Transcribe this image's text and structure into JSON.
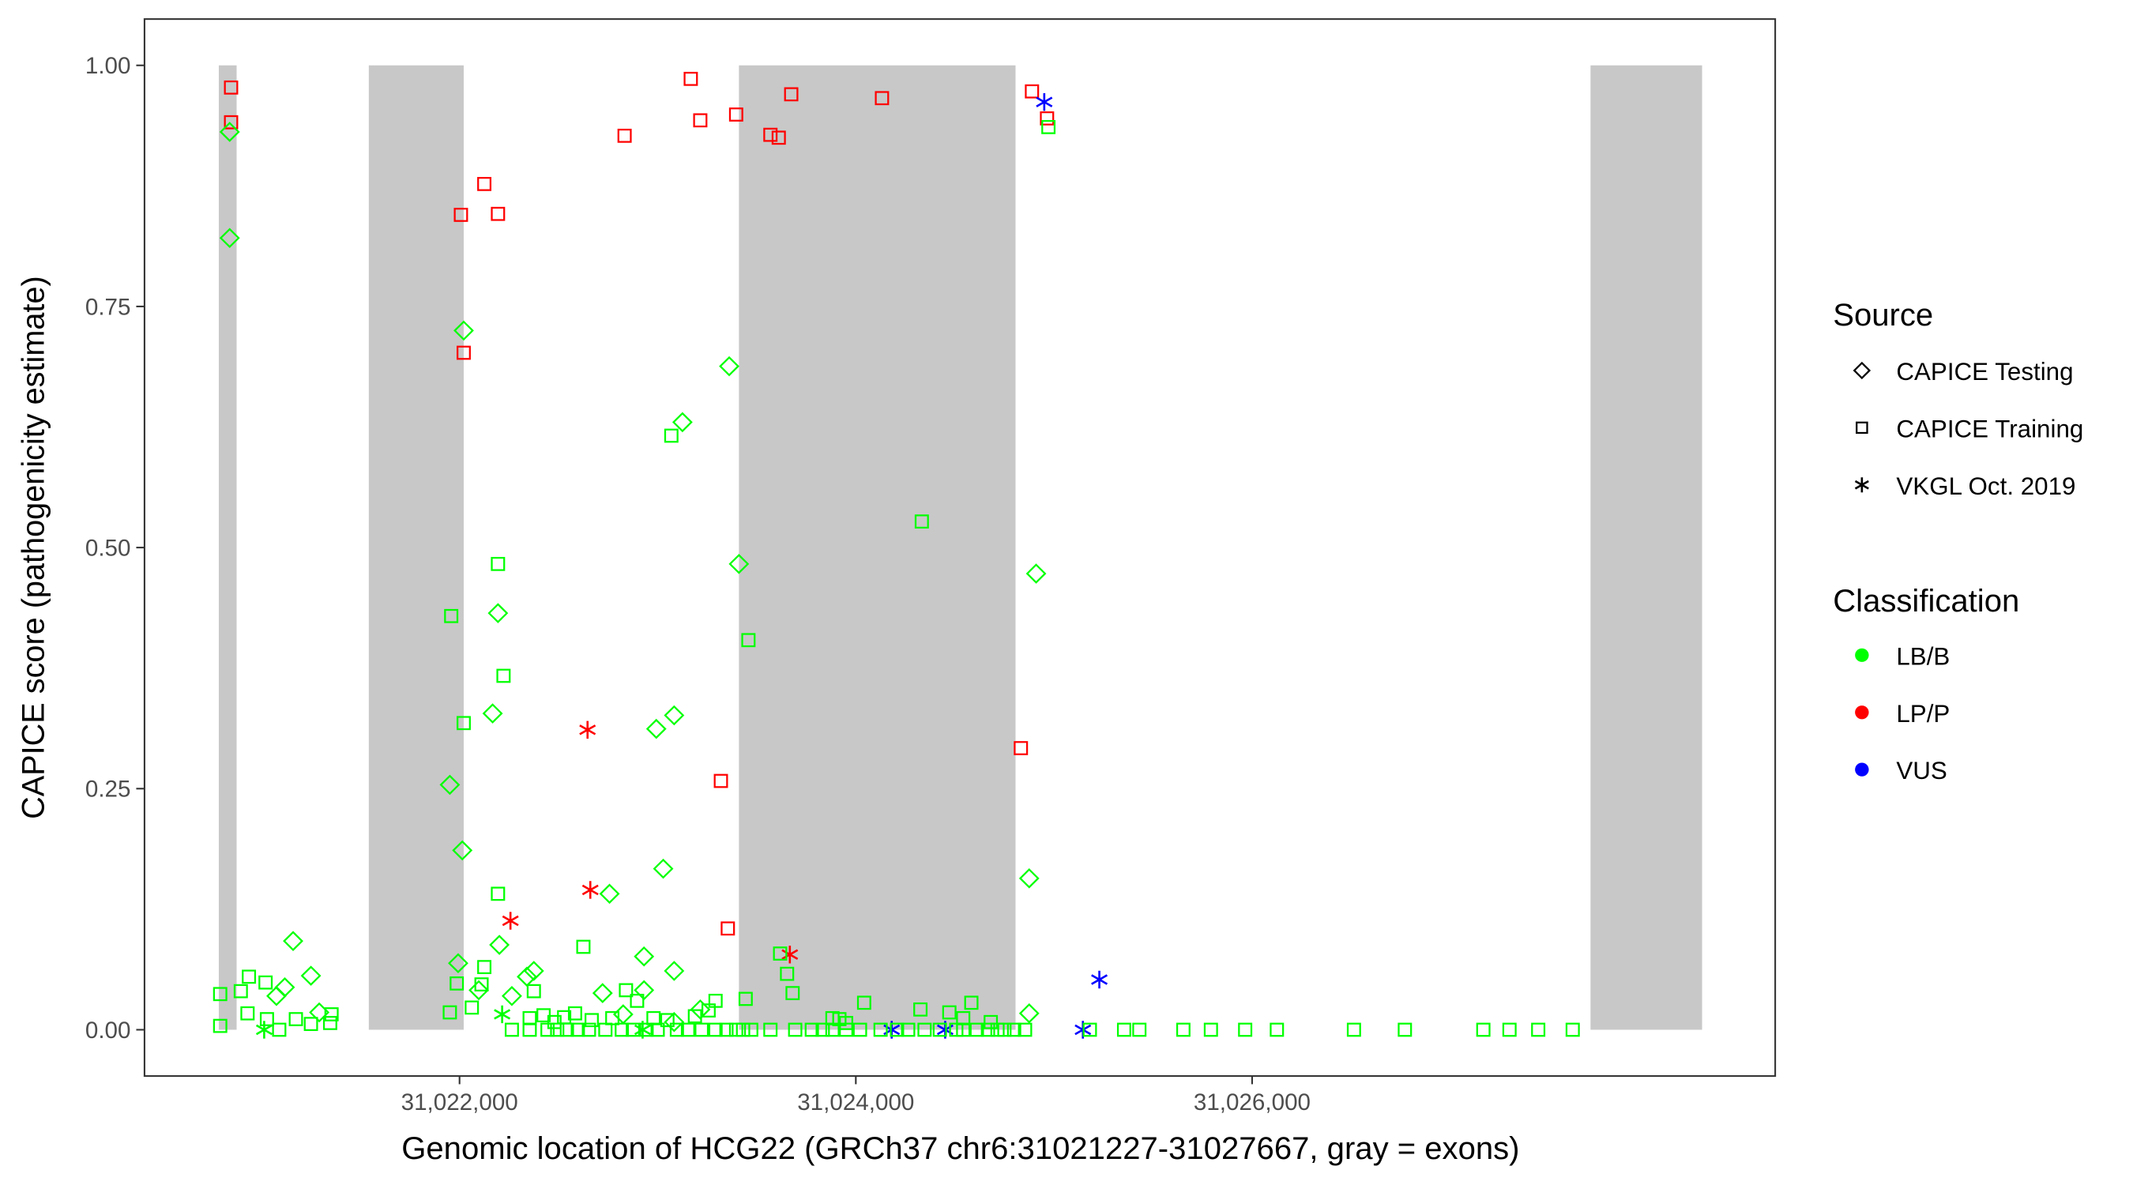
{
  "chart_data": {
    "type": "scatter",
    "title": "",
    "xlabel": "Genomic location of HCG22 (GRCh37 chr6:31021227-31027667, gray = exons)",
    "ylabel": "CAPICE score (pathogenicity estimate)",
    "xlim": [
      31020410,
      31028640
    ],
    "ylim": [
      -0.048,
      1.048
    ],
    "x_ticks": [
      31022000,
      31024000,
      31026000
    ],
    "x_tick_labels": [
      "31,022,000",
      "31,024,000",
      "31,026,000"
    ],
    "y_ticks": [
      0,
      0.25,
      0.5,
      0.75,
      1.0
    ],
    "y_tick_labels": [
      "0.00",
      "0.25",
      "0.50",
      "0.75",
      "1.00"
    ],
    "grid": false,
    "legend_placement": "right",
    "exons": [
      [
        31020785,
        31020875
      ],
      [
        31021542,
        31022021
      ],
      [
        31023410,
        31024806
      ],
      [
        31027708,
        31028271
      ]
    ],
    "exon_color": "#c8c8c8",
    "legend": {
      "source_title": "Source",
      "sources": [
        {
          "key": "testing",
          "label": "CAPICE Testing",
          "shape": "diamond"
        },
        {
          "key": "training",
          "label": "CAPICE Training",
          "shape": "square"
        },
        {
          "key": "vkgl",
          "label": "VKGL Oct. 2019",
          "shape": "asterisk"
        }
      ],
      "class_title": "Classification",
      "classes": [
        {
          "key": "LB/B",
          "label": "LB/B",
          "color": "#00ff00"
        },
        {
          "key": "LP/P",
          "label": "LP/P",
          "color": "#ff0000"
        },
        {
          "key": "VUS",
          "label": "VUS",
          "color": "#0000ff"
        }
      ]
    },
    "series": [
      {
        "source": "training",
        "class": "LP/P",
        "points": [
          [
            31020847,
            0.977
          ],
          [
            31020847,
            0.941
          ],
          [
            31022007,
            0.845
          ],
          [
            31022125,
            0.877
          ],
          [
            31022194,
            0.846
          ],
          [
            31022021,
            0.702
          ],
          [
            31022833,
            0.927
          ],
          [
            31023167,
            0.986
          ],
          [
            31023215,
            0.943
          ],
          [
            31023396,
            0.949
          ],
          [
            31023569,
            0.928
          ],
          [
            31023611,
            0.925
          ],
          [
            31023674,
            0.97
          ],
          [
            31024132,
            0.966
          ],
          [
            31024889,
            0.973
          ],
          [
            31024965,
            0.945
          ],
          [
            31024833,
            0.292
          ],
          [
            31023319,
            0.258
          ],
          [
            31023354,
            0.105
          ]
        ]
      },
      {
        "source": "vkgl",
        "class": "LP/P",
        "points": [
          [
            31022646,
            0.311
          ],
          [
            31022660,
            0.145
          ],
          [
            31022257,
            0.113
          ],
          [
            31023667,
            0.078
          ]
        ]
      },
      {
        "source": "vkgl",
        "class": "VUS",
        "points": [
          [
            31024951,
            0.962
          ],
          [
            31025229,
            0.052
          ],
          [
            31024181,
            0
          ],
          [
            31024451,
            0
          ],
          [
            31025146,
            0
          ]
        ]
      },
      {
        "source": "vkgl",
        "class": "LB/B",
        "points": [
          [
            31021014,
            0
          ],
          [
            31022215,
            0.016
          ],
          [
            31022924,
            0
          ]
        ]
      },
      {
        "source": "testing",
        "class": "LB/B",
        "points": [
          [
            31020840,
            0.931
          ],
          [
            31020840,
            0.821
          ],
          [
            31022021,
            0.725
          ],
          [
            31023361,
            0.688
          ],
          [
            31023125,
            0.63
          ],
          [
            31023410,
            0.483
          ],
          [
            31024910,
            0.473
          ],
          [
            31022194,
            0.432
          ],
          [
            31022167,
            0.328
          ],
          [
            31023083,
            0.326
          ],
          [
            31022993,
            0.312
          ],
          [
            31021951,
            0.254
          ],
          [
            31022014,
            0.186
          ],
          [
            31023028,
            0.167
          ],
          [
            31024875,
            0.157
          ],
          [
            31022757,
            0.141
          ],
          [
            31021160,
            0.092
          ],
          [
            31022201,
            0.088
          ],
          [
            31022931,
            0.076
          ],
          [
            31021250,
            0.056
          ],
          [
            31021993,
            0.069
          ],
          [
            31023083,
            0.061
          ],
          [
            31022375,
            0.061
          ],
          [
            31022340,
            0.055
          ],
          [
            31021118,
            0.044
          ],
          [
            31021076,
            0.035
          ],
          [
            31022097,
            0.041
          ],
          [
            31022722,
            0.038
          ],
          [
            31022931,
            0.041
          ],
          [
            31023215,
            0.021
          ],
          [
            31022264,
            0.035
          ],
          [
            31024875,
            0.017
          ],
          [
            31021292,
            0.018
          ],
          [
            31022826,
            0.016
          ],
          [
            31023083,
            0.008
          ]
        ]
      },
      {
        "source": "training",
        "class": "LB/B",
        "points": [
          [
            31024972,
            0.936
          ],
          [
            31024333,
            0.527
          ],
          [
            31022194,
            0.483
          ],
          [
            31021958,
            0.429
          ],
          [
            31023458,
            0.404
          ],
          [
            31022222,
            0.367
          ],
          [
            31022021,
            0.318
          ],
          [
            31023069,
            0.616
          ],
          [
            31022194,
            0.141
          ],
          [
            31022625,
            0.086
          ],
          [
            31023618,
            0.079
          ],
          [
            31023653,
            0.058
          ],
          [
            31023681,
            0.038
          ],
          [
            31023444,
            0.032
          ],
          [
            31020937,
            0.055
          ],
          [
            31021021,
            0.049
          ],
          [
            31020896,
            0.04
          ],
          [
            31020792,
            0.037
          ],
          [
            31020930,
            0.017
          ],
          [
            31020792,
            0.004
          ],
          [
            31021986,
            0.048
          ],
          [
            31022125,
            0.065
          ],
          [
            31022111,
            0.047
          ],
          [
            31021951,
            0.018
          ],
          [
            31022062,
            0.023
          ],
          [
            31022375,
            0.04
          ],
          [
            31022840,
            0.041
          ],
          [
            31022896,
            0.03
          ],
          [
            31023292,
            0.03
          ],
          [
            31024042,
            0.028
          ],
          [
            31024326,
            0.021
          ],
          [
            31024583,
            0.028
          ],
          [
            31024472,
            0.018
          ],
          [
            31023917,
            0.011
          ],
          [
            31021354,
            0.016
          ],
          [
            31021347,
            0.007
          ],
          [
            31021028,
            0.011
          ],
          [
            31021174,
            0.011
          ],
          [
            31021250,
            0.006
          ],
          [
            31021090,
            0
          ],
          [
            31022354,
            0.012
          ],
          [
            31022424,
            0.015
          ],
          [
            31022479,
            0.008
          ],
          [
            31022528,
            0.013
          ],
          [
            31022583,
            0.017
          ],
          [
            31022667,
            0.01
          ],
          [
            31022771,
            0.012
          ],
          [
            31022979,
            0.012
          ],
          [
            31023049,
            0.01
          ],
          [
            31023188,
            0.014
          ],
          [
            31023257,
            0.02
          ],
          [
            31023882,
            0.012
          ],
          [
            31023951,
            0.007
          ],
          [
            31024542,
            0.012
          ],
          [
            31024681,
            0.008
          ],
          [
            31022264,
            0
          ],
          [
            31022354,
            0
          ],
          [
            31022444,
            0
          ],
          [
            31022493,
            0
          ],
          [
            31022542,
            0
          ],
          [
            31022597,
            0
          ],
          [
            31022653,
            0
          ],
          [
            31022736,
            0
          ],
          [
            31022819,
            0
          ],
          [
            31022875,
            0
          ],
          [
            31022944,
            0
          ],
          [
            31023000,
            0
          ],
          [
            31023097,
            0
          ],
          [
            31023153,
            0
          ],
          [
            31023222,
            0
          ],
          [
            31023292,
            0
          ],
          [
            31023347,
            0
          ],
          [
            31023396,
            0
          ],
          [
            31023431,
            0
          ],
          [
            31023472,
            0
          ],
          [
            31023569,
            0
          ],
          [
            31023694,
            0
          ],
          [
            31023778,
            0
          ],
          [
            31023833,
            0
          ],
          [
            31023882,
            0
          ],
          [
            31023951,
            0
          ],
          [
            31024021,
            0
          ],
          [
            31024125,
            0
          ],
          [
            31024208,
            0
          ],
          [
            31024264,
            0
          ],
          [
            31024347,
            0
          ],
          [
            31024424,
            0
          ],
          [
            31024507,
            0
          ],
          [
            31024542,
            0
          ],
          [
            31024611,
            0
          ],
          [
            31024667,
            0
          ],
          [
            31024715,
            0
          ],
          [
            31024750,
            0
          ],
          [
            31024799,
            0
          ],
          [
            31024854,
            0
          ],
          [
            31025181,
            0
          ],
          [
            31025354,
            0
          ],
          [
            31025431,
            0
          ],
          [
            31025653,
            0
          ],
          [
            31025792,
            0
          ],
          [
            31025965,
            0
          ],
          [
            31026125,
            0
          ],
          [
            31026514,
            0
          ],
          [
            31026771,
            0
          ],
          [
            31027167,
            0
          ],
          [
            31027299,
            0
          ],
          [
            31027444,
            0
          ],
          [
            31027618,
            0
          ]
        ]
      }
    ]
  }
}
